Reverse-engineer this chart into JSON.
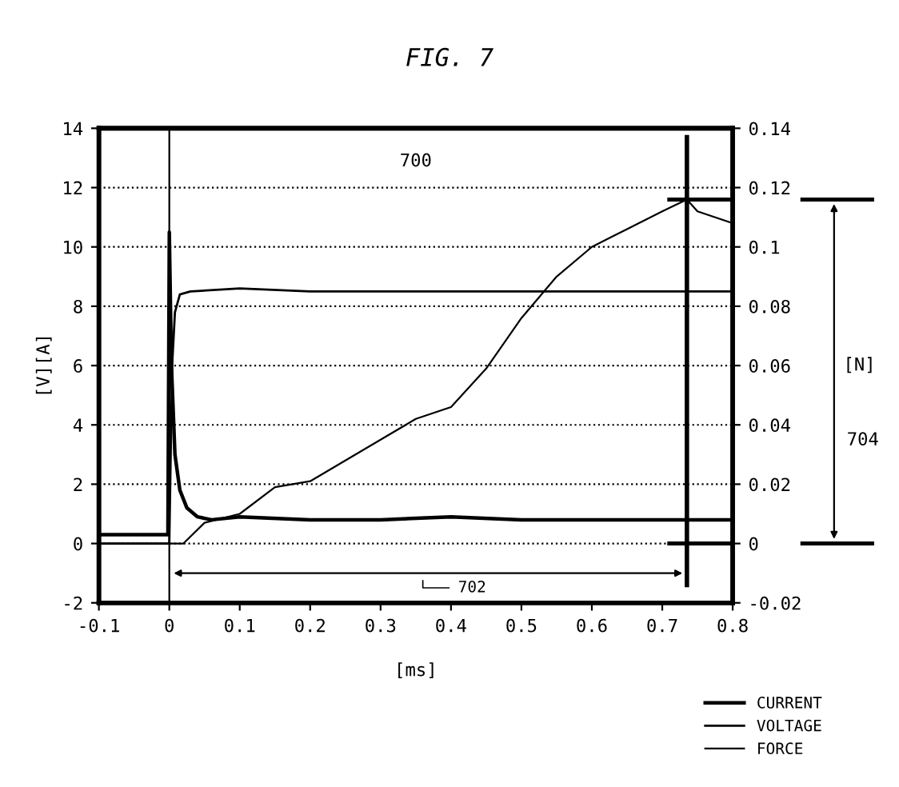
{
  "chart_data": {
    "type": "line",
    "title": "FIG. 7",
    "xlabel": "[ms]",
    "ylabel": "[V][A]",
    "y2label": "[N]",
    "xlim": [
      -0.1,
      0.8
    ],
    "xticks": [
      -0.1,
      0,
      0.1,
      0.2,
      0.3,
      0.4,
      0.5,
      0.6,
      0.7,
      0.8
    ],
    "ylim": [
      -2,
      14
    ],
    "yticks": [
      -2,
      0,
      2,
      4,
      6,
      8,
      10,
      12,
      14
    ],
    "y2lim": [
      -0.02,
      0.14
    ],
    "y2ticks": [
      -0.02,
      0,
      0.02,
      0.04,
      0.06,
      0.08,
      0.1,
      0.12,
      0.14
    ],
    "grid": "y",
    "legend": "bottom right",
    "line_style": "solid",
    "marker": "none",
    "series": [
      {
        "name": "CURRENT",
        "color": "#000000",
        "x": [
          -0.1,
          -0.05,
          -0.002,
          0,
          0.003,
          0.008,
          0.015,
          0.025,
          0.04,
          0.06,
          0.1,
          0.2,
          0.3,
          0.4,
          0.5,
          0.6,
          0.7,
          0.8
        ],
        "values": [
          0.3,
          0.3,
          0.3,
          10.5,
          6,
          3,
          1.8,
          1.2,
          0.9,
          0.8,
          0.9,
          0.8,
          0.8,
          0.9,
          0.8,
          0.8,
          0.8,
          0.8
        ]
      },
      {
        "name": "VOLTAGE",
        "color": "#000000",
        "x": [
          -0.1,
          -0.05,
          0,
          0.004,
          0.008,
          0.015,
          0.03,
          0.1,
          0.2,
          0.3,
          0.4,
          0.5,
          0.6,
          0.7,
          0.8
        ],
        "values": [
          0.0,
          0.0,
          0.0,
          6,
          7.8,
          8.4,
          8.5,
          8.6,
          8.5,
          8.5,
          8.5,
          8.5,
          8.5,
          8.5,
          8.5
        ]
      },
      {
        "name": "FORCE",
        "color": "#000000",
        "axis": "y2",
        "x": [
          -0.1,
          0,
          0.02,
          0.05,
          0.1,
          0.15,
          0.2,
          0.25,
          0.3,
          0.35,
          0.4,
          0.45,
          0.5,
          0.55,
          0.6,
          0.65,
          0.7,
          0.735,
          0.75,
          0.8
        ],
        "values": [
          0,
          0,
          0,
          0.007,
          0.01,
          0.019,
          0.021,
          0.028,
          0.035,
          0.042,
          0.046,
          0.059,
          0.076,
          0.09,
          0.1,
          0.106,
          0.112,
          0.116,
          0.112,
          0.108
        ]
      }
    ],
    "ref_lines": [
      {
        "axis": "x",
        "value": 0,
        "color": "#000000"
      },
      {
        "axis": "x",
        "value": 0.735,
        "color": "#000000"
      },
      {
        "axis": "y2",
        "value": 0,
        "color": "#000000"
      },
      {
        "axis": "y2",
        "value": 0.116,
        "color": "#000000"
      }
    ],
    "annotations": [
      "700",
      "702",
      "704"
    ]
  }
}
